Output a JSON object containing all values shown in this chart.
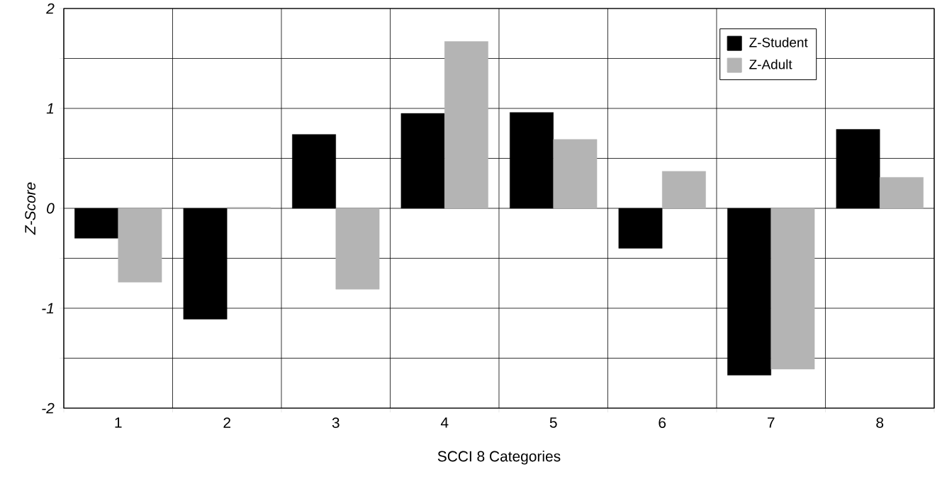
{
  "chart_data": {
    "type": "bar",
    "xlabel": "SCCI 8 Categories",
    "ylabel": "Z-Score",
    "categories": [
      "1",
      "2",
      "3",
      "4",
      "5",
      "6",
      "7",
      "8"
    ],
    "series": [
      {
        "name": "Z-Student",
        "color": "#000000",
        "values": [
          -0.3,
          -1.11,
          0.74,
          0.95,
          0.96,
          -0.4,
          -1.67,
          0.79
        ]
      },
      {
        "name": "Z-Adult",
        "color": "#b4b4b4",
        "values": [
          -0.74,
          0.01,
          -0.81,
          1.67,
          0.69,
          0.37,
          -1.61,
          0.31
        ]
      }
    ],
    "ylim": [
      -2,
      2
    ],
    "yticks": [
      -2,
      {
        "value": -1.5,
        "label": null
      },
      -1,
      {
        "value": -0.5,
        "label": null
      },
      0,
      {
        "value": 0.5,
        "label": null
      },
      1,
      {
        "value": 1.5,
        "label": null
      },
      2
    ],
    "grid": true,
    "legend": "top right"
  }
}
